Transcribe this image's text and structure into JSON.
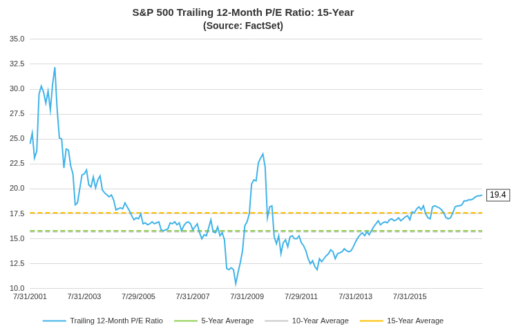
{
  "chart_data": {
    "type": "line",
    "title": "S&P 500 Trailing 12-Month P/E Ratio: 15-Year",
    "subtitle": "(Source: FactSet)",
    "categories": [
      "7/31/2001",
      null,
      null,
      null,
      null,
      null,
      null,
      null,
      null,
      null,
      null,
      null,
      null,
      null,
      null,
      null,
      null,
      null,
      null,
      null,
      null,
      null,
      null,
      null,
      "7/31/2003",
      null,
      null,
      null,
      null,
      null,
      null,
      null,
      null,
      null,
      null,
      null,
      null,
      null,
      null,
      null,
      null,
      null,
      null,
      null,
      null,
      null,
      null,
      null,
      "7/29/2005",
      null,
      null,
      null,
      null,
      null,
      null,
      null,
      null,
      null,
      null,
      null,
      null,
      null,
      null,
      null,
      null,
      null,
      null,
      null,
      null,
      null,
      null,
      null,
      "7/31/2007",
      null,
      null,
      null,
      null,
      null,
      null,
      null,
      null,
      null,
      null,
      null,
      null,
      null,
      null,
      null,
      null,
      null,
      null,
      null,
      null,
      null,
      null,
      null,
      "7/31/2009",
      null,
      null,
      null,
      null,
      null,
      null,
      null,
      null,
      null,
      null,
      null,
      null,
      null,
      null,
      null,
      null,
      null,
      null,
      null,
      null,
      null,
      null,
      null,
      "7/29/2011",
      null,
      null,
      null,
      null,
      null,
      null,
      null,
      null,
      null,
      null,
      null,
      null,
      null,
      null,
      null,
      null,
      null,
      null,
      null,
      null,
      null,
      null,
      null,
      "7/31/2013",
      null,
      null,
      null,
      null,
      null,
      null,
      null,
      null,
      null,
      null,
      null,
      null,
      null,
      null,
      null,
      null,
      null,
      null,
      null,
      null,
      null,
      null,
      null,
      "7/31/2015",
      null,
      null,
      null,
      null,
      null,
      null,
      null,
      null,
      null,
      null,
      null,
      null,
      null,
      null,
      null,
      null,
      null,
      null,
      null,
      null,
      null,
      null,
      null,
      null,
      null,
      null,
      null,
      null,
      null,
      null,
      null,
      null
    ],
    "series": [
      {
        "name": "Trailing 12-Month P/E Ratio",
        "color": "#3fb3e8",
        "line_style": "solid",
        "values": [
          24.5,
          25.6,
          23.1,
          23.8,
          29.5,
          30.3,
          29.7,
          28.6,
          29.8,
          27.9,
          30.5,
          32.2,
          28.0,
          25.1,
          25.0,
          22.1,
          24.0,
          23.9,
          22.3,
          21.5,
          18.4,
          18.6,
          20.0,
          21.4,
          21.5,
          21.9,
          20.4,
          20.2,
          21.2,
          20.1,
          20.9,
          21.3,
          19.9,
          19.6,
          19.4,
          19.2,
          19.4,
          18.9,
          17.9,
          18.0,
          18.1,
          18.0,
          18.6,
          18.2,
          17.8,
          17.3,
          16.9,
          17.1,
          17.0,
          17.5,
          16.5,
          16.6,
          16.4,
          16.5,
          16.7,
          16.5,
          16.6,
          16.7,
          15.9,
          15.8,
          15.9,
          16.0,
          16.6,
          16.5,
          16.7,
          16.4,
          16.6,
          15.8,
          16.3,
          16.6,
          16.7,
          16.5,
          15.9,
          16.2,
          16.5,
          15.6,
          15.0,
          15.4,
          15.3,
          16.1,
          16.9,
          15.7,
          15.6,
          16.2,
          15.3,
          15.6,
          14.9,
          12.0,
          11.9,
          12.1,
          11.9,
          10.5,
          11.6,
          12.6,
          13.8,
          16.3,
          16.7,
          17.5,
          20.5,
          20.9,
          20.8,
          22.6,
          23.1,
          23.5,
          22.2,
          17.1,
          18.2,
          18.3,
          15.2,
          14.5,
          15.3,
          13.5,
          14.6,
          14.9,
          14.2,
          15.2,
          15.3,
          15.0,
          15.0,
          15.3,
          14.6,
          14.3,
          13.8,
          13.0,
          12.5,
          12.8,
          12.2,
          11.9,
          13.0,
          12.7,
          13.0,
          13.3,
          13.5,
          13.9,
          13.7,
          13.0,
          13.5,
          13.6,
          13.7,
          14.0,
          13.8,
          13.7,
          13.8,
          14.2,
          14.7,
          15.1,
          15.4,
          15.6,
          15.3,
          15.7,
          15.4,
          15.8,
          16.2,
          16.5,
          16.8,
          16.4,
          16.6,
          16.7,
          16.6,
          16.9,
          17.0,
          16.8,
          16.9,
          17.1,
          16.8,
          17.0,
          17.2,
          17.3,
          16.9,
          17.7,
          17.6,
          18.0,
          18.2,
          17.9,
          18.3,
          17.5,
          17.1,
          17.0,
          18.2,
          18.3,
          18.2,
          18.1,
          17.9,
          17.6,
          17.1,
          17.0,
          17.1,
          17.6,
          18.2,
          18.3,
          18.3,
          18.4,
          18.8,
          18.8,
          18.9,
          18.9,
          19.0,
          19.2,
          19.3,
          19.3,
          19.4
        ]
      }
    ],
    "reference_lines": [
      {
        "name": "5-Year Average",
        "color": "#92d050",
        "value": 15.8,
        "line_style": "dashed"
      },
      {
        "name": "10-Year Average",
        "color": "#c8c8c8",
        "value": 15.7,
        "line_style": "dashed"
      },
      {
        "name": "15-Year Average",
        "color": "#ffc000",
        "value": 17.6,
        "line_style": "dashed"
      }
    ],
    "annotations": [
      {
        "text": "19.4"
      }
    ],
    "ylim": [
      10,
      35
    ],
    "yticks": [
      {
        "value": 10,
        "label": "10.0"
      },
      12.5,
      {
        "value": 15,
        "label": "15.0"
      },
      17.5,
      {
        "value": 20,
        "label": "20.0"
      },
      22.5,
      {
        "value": 25,
        "label": "25.0"
      },
      27.5,
      {
        "value": 30,
        "label": "30.0"
      },
      32.5,
      {
        "value": 35,
        "label": "35.0"
      }
    ],
    "grid": true,
    "legend": "bottom"
  }
}
